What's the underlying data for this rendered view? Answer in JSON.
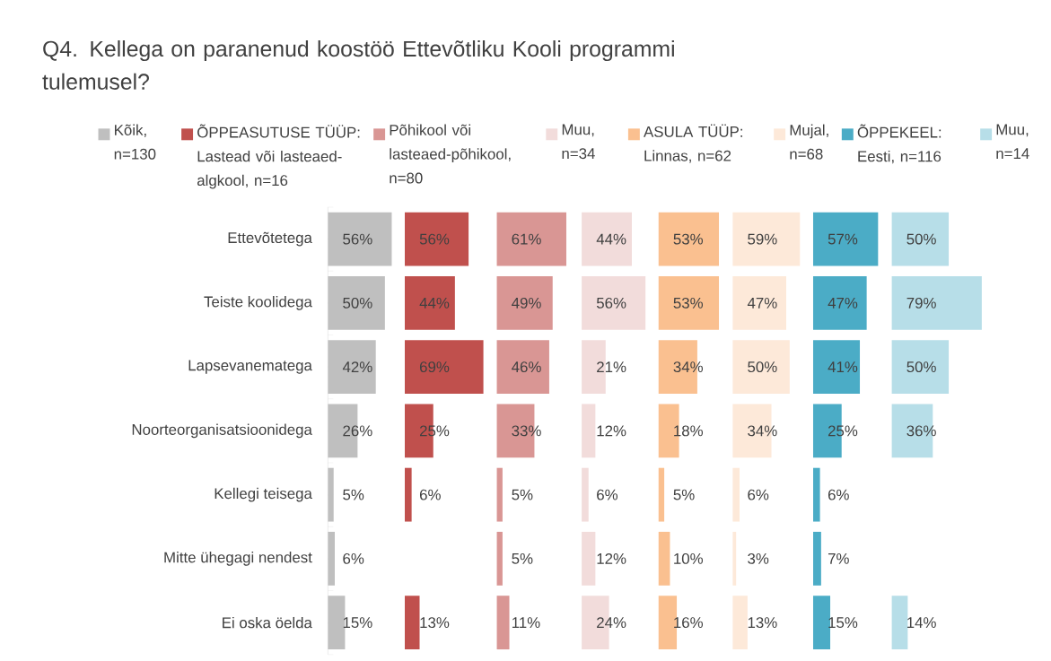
{
  "chart_data": [
    {
      "type": "bar",
      "orientation": "horizontal",
      "title": "Q4. Kellega on paranenud koostöö Ettevõtliku Kooli programmi tulemusel?",
      "categories": [
        "Ettevõtetega",
        "Teiste koolidega",
        "Lapsevanematega",
        "Noorteorganisatsioonidega",
        "Kellegi teisega",
        "Mitte ühegagi nendest",
        "Ei oska öelda"
      ],
      "legend": "top",
      "tick_labels": "y",
      "series": [
        {
          "name": "Kõik, n=130",
          "color": "#bfbfbf",
          "values": [
            56,
            50,
            42,
            26,
            5,
            6,
            15
          ],
          "value_labels": [
            "56%",
            "50%",
            "42%",
            "26%",
            "5%",
            "6%",
            "15%"
          ]
        }
      ]
    },
    {
      "type": "bar",
      "orientation": "horizontal",
      "legend": "top",
      "tick_labels": false,
      "series": [
        {
          "name": "ÕPPEASUTUSE TÜÜP: Lastead või lasteaed-algkool, n=16",
          "color": "#c0504d",
          "values": [
            56,
            44,
            69,
            25,
            6,
            null,
            13
          ],
          "value_labels": [
            "56%",
            "44%",
            "69%",
            "25%",
            "6%",
            null,
            "13%"
          ]
        }
      ]
    },
    {
      "type": "bar",
      "orientation": "horizontal",
      "legend": "top",
      "tick_labels": false,
      "series": [
        {
          "name": "Põhikool või lasteaed-põhikool, n=80",
          "color": "#d99694",
          "values": [
            61,
            49,
            46,
            33,
            5,
            5,
            11
          ],
          "value_labels": [
            "61%",
            "49%",
            "46%",
            "33%",
            "5%",
            "5%",
            "11%"
          ]
        }
      ]
    },
    {
      "type": "bar",
      "orientation": "horizontal",
      "legend": "top",
      "tick_labels": false,
      "series": [
        {
          "name": "Muu, n=34",
          "color": "#f2dcdb",
          "values": [
            44,
            56,
            21,
            12,
            6,
            12,
            24
          ],
          "value_labels": [
            "44%",
            "56%",
            "21%",
            "12%",
            "6%",
            "12%",
            "24%"
          ]
        }
      ]
    },
    {
      "type": "bar",
      "orientation": "horizontal",
      "legend": "top",
      "tick_labels": false,
      "series": [
        {
          "name": "ASULA TÜÜP: Linnas, n=62",
          "color": "#fac090",
          "values": [
            53,
            53,
            34,
            18,
            5,
            10,
            16
          ],
          "value_labels": [
            "53%",
            "53%",
            "34%",
            "18%",
            "5%",
            "10%",
            "16%"
          ]
        }
      ]
    },
    {
      "type": "bar",
      "orientation": "horizontal",
      "legend": "top",
      "tick_labels": false,
      "series": [
        {
          "name": "Mujal, n=68",
          "color": "#fde9d9",
          "values": [
            59,
            47,
            50,
            34,
            6,
            3,
            13
          ],
          "value_labels": [
            "59%",
            "47%",
            "50%",
            "34%",
            "6%",
            "3%",
            "13%"
          ]
        }
      ]
    },
    {
      "type": "bar",
      "orientation": "horizontal",
      "legend": "top",
      "tick_labels": false,
      "series": [
        {
          "name": "ÕPPEKEEL: Eesti, n=116",
          "color": "#4bacc6",
          "values": [
            57,
            47,
            41,
            25,
            6,
            7,
            15
          ],
          "value_labels": [
            "57%",
            "47%",
            "41%",
            "25%",
            "6%",
            "7%",
            "15%"
          ]
        }
      ]
    },
    {
      "type": "bar",
      "orientation": "horizontal",
      "legend": "top",
      "tick_labels": false,
      "series": [
        {
          "name": "Muu, n=14",
          "color": "#b7dee8",
          "values": [
            50,
            79,
            50,
            36,
            null,
            null,
            14
          ],
          "value_labels": [
            "50%",
            "79%",
            "50%",
            "36%",
            null,
            null,
            "14%"
          ]
        }
      ]
    }
  ]
}
